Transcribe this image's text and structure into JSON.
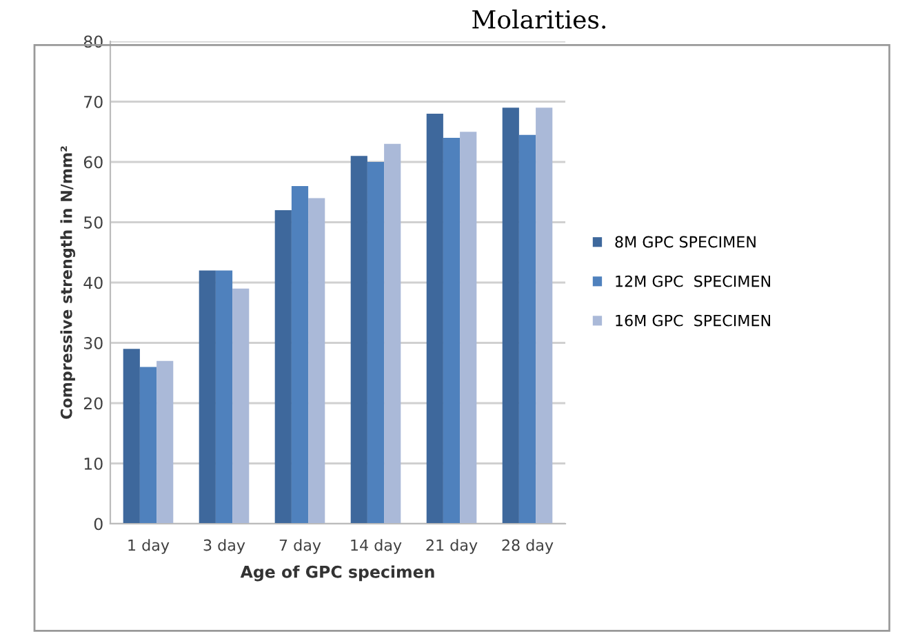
{
  "chart_data": {
    "type": "bar",
    "annotations": [
      "Molarities."
    ],
    "categories": [
      "1 day",
      "3 day",
      "7 day",
      "14 day",
      "21 day",
      "28 day"
    ],
    "series": [
      {
        "name": "8M GPC SPECIMEN",
        "color": "#3e689c",
        "values": [
          29,
          42,
          52,
          61,
          68,
          69
        ]
      },
      {
        "name": "12M GPC  SPECIMEN",
        "color": "#4f81bd",
        "values": [
          26,
          42,
          56,
          60,
          64,
          64.5
        ]
      },
      {
        "name": "16M GPC  SPECIMEN",
        "color": "#aab9d8",
        "values": [
          27,
          39,
          54,
          63,
          65,
          69
        ]
      }
    ],
    "xlabel": "Age of GPC specimen",
    "ylabel": "Compressive strength in N/mm²",
    "ylim": [
      0,
      80
    ],
    "yticks": [
      0,
      10,
      20,
      30,
      40,
      50,
      60,
      70,
      80
    ],
    "grid": "y",
    "legend": "right"
  }
}
